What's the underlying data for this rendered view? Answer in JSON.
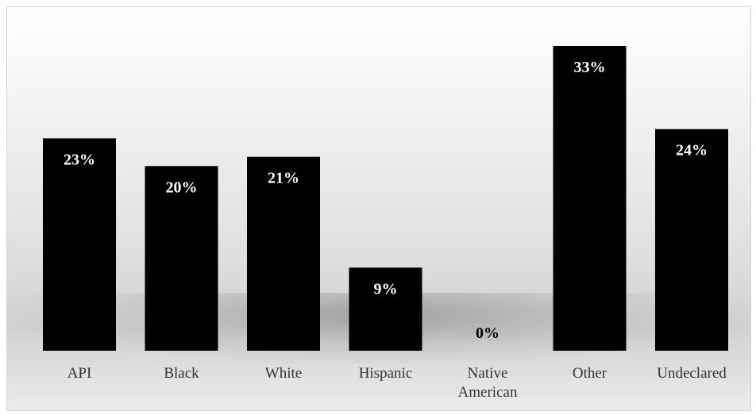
{
  "chart_data": {
    "type": "bar",
    "categories": [
      [
        "API"
      ],
      [
        "Black"
      ],
      [
        "White"
      ],
      [
        "Hispanic"
      ],
      [
        "Native",
        "American"
      ],
      [
        "Other"
      ],
      [
        "Undeclared"
      ]
    ],
    "values": [
      23,
      20,
      21,
      9,
      0,
      33,
      24
    ],
    "data_labels": [
      "23%",
      "20%",
      "21%",
      "9%",
      "0%",
      "33%",
      "24%"
    ],
    "title": "",
    "xlabel": "",
    "ylabel": "",
    "ylim": [
      0,
      35
    ],
    "grid": false,
    "legend": "none",
    "bar_color": "#000000"
  }
}
